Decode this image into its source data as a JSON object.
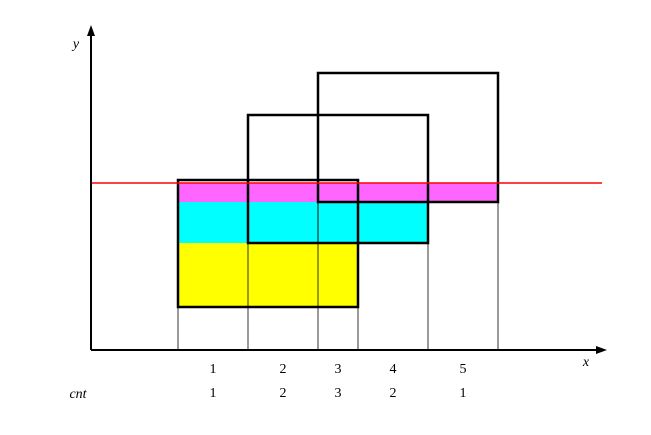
{
  "axes": {
    "y_label": "y",
    "x_label": "x"
  },
  "row_label": "cnt",
  "intervals": [
    {
      "index": 1,
      "cnt": 1
    },
    {
      "index": 2,
      "cnt": 2
    },
    {
      "index": 3,
      "cnt": 3
    },
    {
      "index": 4,
      "cnt": 2
    },
    {
      "index": 5,
      "cnt": 1
    }
  ]
}
